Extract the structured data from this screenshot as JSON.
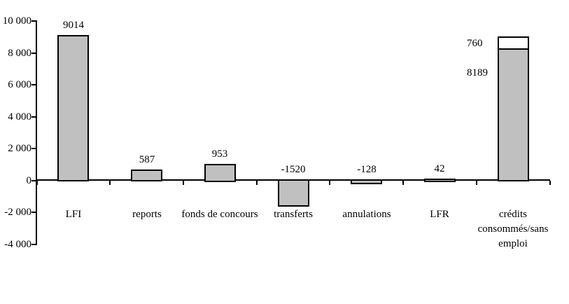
{
  "chart_data": {
    "type": "bar",
    "title": "",
    "xlabel": "",
    "ylabel": "",
    "categories": [
      "LFI",
      "reports",
      "fonds de concours",
      "transferts",
      "annulations",
      "LFR",
      "crédits consommés/sans emploi"
    ],
    "series": [
      {
        "name": "segment-principal",
        "color": "#c0c0c0",
        "values": [
          9014,
          587,
          953,
          -1520,
          -128,
          42,
          8189
        ]
      },
      {
        "name": "segment-superieur",
        "color": "#ffffff",
        "values": [
          0,
          0,
          0,
          0,
          0,
          0,
          760
        ]
      }
    ],
    "data_labels": {
      "per_category": [
        "9014",
        "587",
        "953",
        "-1520",
        "-128",
        "42",
        null
      ],
      "stacked_segment_labels": {
        "category_index": 6,
        "labels": [
          "760",
          "8189"
        ]
      }
    },
    "ylim": [
      -4000,
      10000
    ],
    "y_tick_step": 2000,
    "y_tick_values": [
      10000,
      8000,
      6000,
      4000,
      2000,
      0,
      -2000,
      -4000
    ],
    "y_tick_labels": [
      "10 000",
      "8 000",
      "6 000",
      "4 000",
      "2 000",
      "0",
      "-2 000",
      "-4 000"
    ],
    "grid": "off",
    "legend": "none",
    "colors": {
      "bar_fill": "#c0c0c0",
      "stacked_top_fill": "#ffffff",
      "bar_border": "#000000",
      "axis": "#000000",
      "background": "#ffffff"
    }
  }
}
